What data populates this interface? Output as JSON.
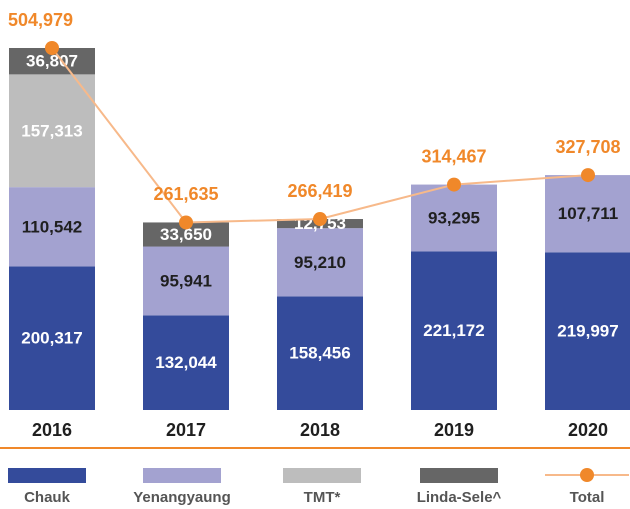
{
  "chart_data": {
    "type": "stacked-bar-line",
    "categories": [
      "2016",
      "2017",
      "2018",
      "2019",
      "2020"
    ],
    "series": [
      {
        "name": "Chauk",
        "color": "#344b9b",
        "label_color": "#ffffff",
        "values": [
          200317,
          132044,
          158456,
          221172,
          219997
        ],
        "value_labels": [
          "200,317",
          "132,044",
          "158,456",
          "221,172",
          "219,997"
        ]
      },
      {
        "name": "Yenangyaung",
        "color": "#a3a2d0",
        "label_color": "#1f1f1f",
        "values": [
          110542,
          95941,
          95210,
          93295,
          107711
        ],
        "value_labels": [
          "110,542",
          "95,941",
          "95,210",
          "93,295",
          "107,711"
        ]
      },
      {
        "name": "TMT*",
        "color": "#bdbdbd",
        "label_color": "#ffffff",
        "values": [
          157313,
          null,
          null,
          null,
          null
        ],
        "value_labels": [
          "157,313",
          null,
          null,
          null,
          null
        ]
      },
      {
        "name": "Linda-Sele^",
        "color": "#666666",
        "label_color": "#ffffff",
        "values": [
          36807,
          33650,
          12753,
          null,
          null
        ],
        "value_labels": [
          "36,807",
          "33,650",
          "12,753",
          null,
          null
        ]
      }
    ],
    "total": {
      "name": "Total",
      "color": "#f0882a",
      "line_color": "#f7b98a",
      "values": [
        504979,
        261635,
        266419,
        314467,
        327708
      ],
      "value_labels": [
        "504,979",
        "261,635",
        "266,419",
        "314,467",
        "327,708"
      ]
    }
  }
}
